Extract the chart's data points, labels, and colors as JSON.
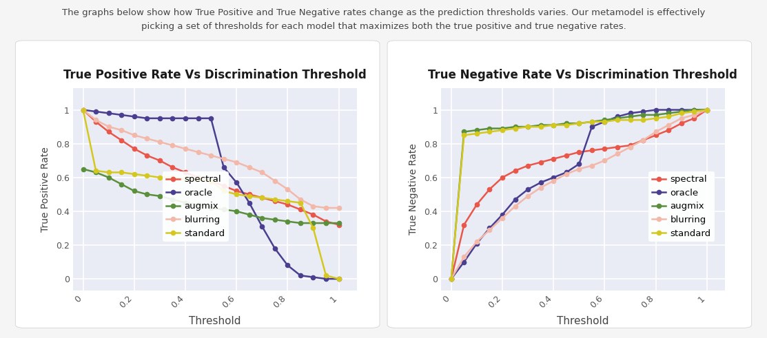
{
  "title_text1": "The graphs below show how True Positive and True Negative rates change as the prediction thresholds varies. Our metamodel is effectively",
  "title_text2": "picking a set of thresholds for each model that maximizes both the true positive and true negative rates.",
  "plot1_title": "True Positive Rate Vs Discrimination Threshold",
  "plot2_title": "True Negative Rate Vs Discrimination Threshold",
  "xlabel": "Threshold",
  "ylabel1": "True Positive Rate",
  "ylabel2": "True Negative Rate",
  "colors": {
    "spectral": "#e8574a",
    "oracle": "#4a3f8f",
    "augmix": "#5a8f3c",
    "blurring": "#f2b8aa",
    "standard": "#d4c820"
  },
  "tpr": {
    "x": [
      0.0,
      0.05,
      0.1,
      0.15,
      0.2,
      0.25,
      0.3,
      0.35,
      0.4,
      0.45,
      0.5,
      0.55,
      0.6,
      0.65,
      0.7,
      0.75,
      0.8,
      0.85,
      0.9,
      0.95,
      1.0
    ],
    "spectral": [
      1.0,
      0.93,
      0.87,
      0.82,
      0.77,
      0.73,
      0.7,
      0.66,
      0.63,
      0.6,
      0.58,
      0.55,
      0.52,
      0.5,
      0.48,
      0.46,
      0.44,
      0.41,
      0.38,
      0.34,
      0.32
    ],
    "oracle": [
      1.0,
      0.99,
      0.98,
      0.97,
      0.96,
      0.95,
      0.95,
      0.95,
      0.95,
      0.95,
      0.95,
      0.66,
      0.57,
      0.45,
      0.31,
      0.18,
      0.08,
      0.02,
      0.01,
      0.0,
      0.0
    ],
    "augmix": [
      0.65,
      0.63,
      0.6,
      0.56,
      0.52,
      0.5,
      0.49,
      0.47,
      0.45,
      0.44,
      0.42,
      0.41,
      0.4,
      0.38,
      0.36,
      0.35,
      0.34,
      0.33,
      0.33,
      0.33,
      0.33
    ],
    "blurring": [
      1.0,
      0.94,
      0.9,
      0.88,
      0.85,
      0.83,
      0.81,
      0.79,
      0.77,
      0.75,
      0.73,
      0.71,
      0.69,
      0.66,
      0.63,
      0.58,
      0.53,
      0.47,
      0.43,
      0.42,
      0.42
    ],
    "standard": [
      1.0,
      0.64,
      0.63,
      0.63,
      0.62,
      0.61,
      0.6,
      0.6,
      0.59,
      0.59,
      0.58,
      0.52,
      0.5,
      0.49,
      0.48,
      0.47,
      0.46,
      0.45,
      0.3,
      0.02,
      0.0
    ]
  },
  "tnr": {
    "x": [
      0.0,
      0.05,
      0.1,
      0.15,
      0.2,
      0.25,
      0.3,
      0.35,
      0.4,
      0.45,
      0.5,
      0.55,
      0.6,
      0.65,
      0.7,
      0.75,
      0.8,
      0.85,
      0.9,
      0.95,
      1.0
    ],
    "spectral": [
      0.0,
      0.32,
      0.44,
      0.53,
      0.6,
      0.64,
      0.67,
      0.69,
      0.71,
      0.73,
      0.75,
      0.76,
      0.77,
      0.78,
      0.79,
      0.82,
      0.85,
      0.88,
      0.92,
      0.95,
      1.0
    ],
    "oracle": [
      0.0,
      0.1,
      0.21,
      0.3,
      0.38,
      0.47,
      0.53,
      0.57,
      0.6,
      0.63,
      0.68,
      0.9,
      0.93,
      0.96,
      0.98,
      0.99,
      1.0,
      1.0,
      1.0,
      1.0,
      1.0
    ],
    "augmix": [
      0.0,
      0.87,
      0.88,
      0.89,
      0.89,
      0.9,
      0.9,
      0.91,
      0.91,
      0.92,
      0.92,
      0.93,
      0.94,
      0.95,
      0.96,
      0.97,
      0.97,
      0.98,
      0.99,
      1.0,
      1.0
    ],
    "blurring": [
      0.0,
      0.13,
      0.22,
      0.29,
      0.36,
      0.43,
      0.49,
      0.54,
      0.58,
      0.62,
      0.65,
      0.67,
      0.7,
      0.74,
      0.78,
      0.82,
      0.87,
      0.91,
      0.95,
      0.97,
      1.0
    ],
    "standard": [
      0.0,
      0.85,
      0.86,
      0.87,
      0.88,
      0.89,
      0.9,
      0.9,
      0.91,
      0.91,
      0.92,
      0.93,
      0.93,
      0.94,
      0.94,
      0.94,
      0.95,
      0.96,
      0.98,
      0.99,
      1.0
    ]
  },
  "page_bg": "#f5f5f5",
  "card_bg": "#ffffff",
  "plot_bg_color": "#eaecf5",
  "grid_color": "#ffffff",
  "title_fontsize": 9.5,
  "plot_title_fontsize": 12,
  "legend_fontsize": 9.5,
  "tick_fontsize": 9,
  "ylabel_fontsize": 10,
  "xlabel_fontsize": 11,
  "marker": "o",
  "markersize": 4.5,
  "linewidth": 1.8
}
